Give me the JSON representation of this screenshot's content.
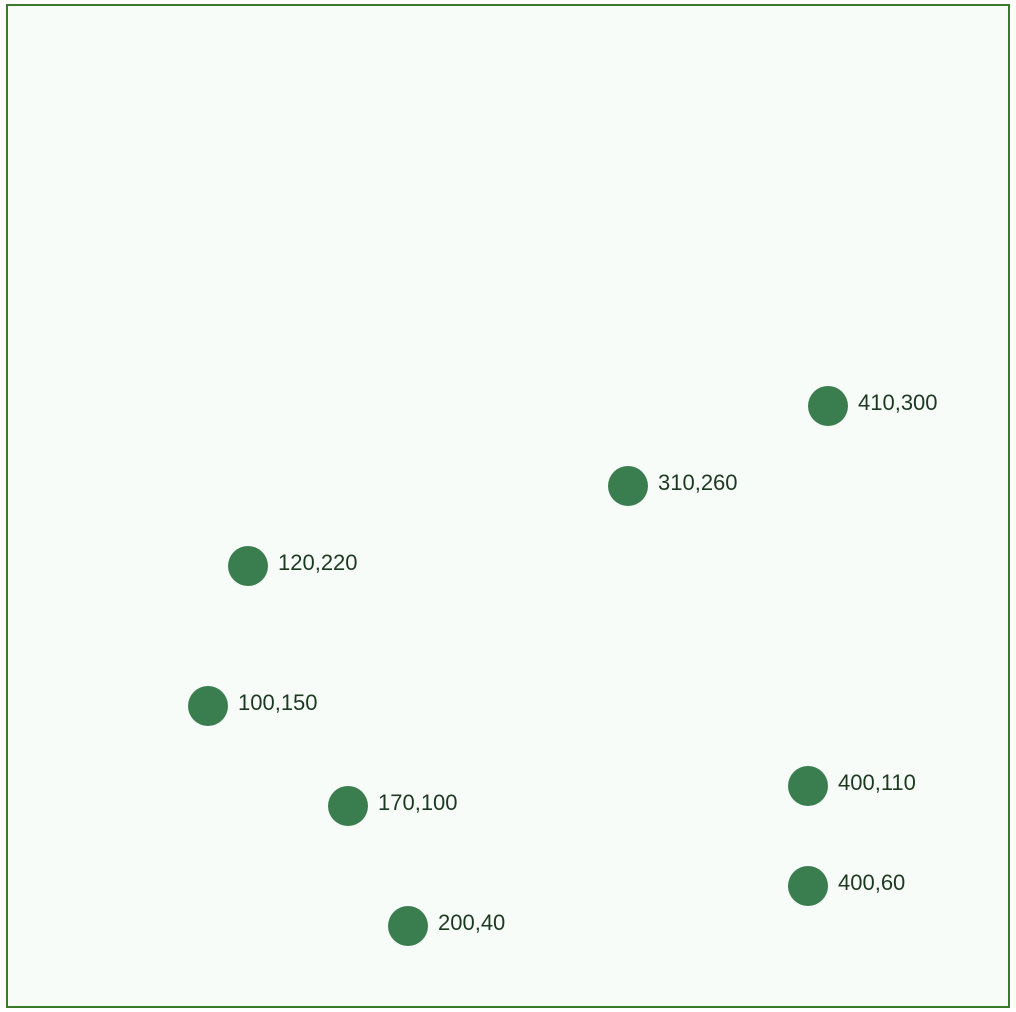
{
  "chart_data": {
    "type": "scatter",
    "title": "",
    "xlabel": "",
    "ylabel": "",
    "xlim": [
      0,
      500
    ],
    "ylim": [
      0,
      500
    ],
    "grid": false,
    "legend": "none",
    "marker_color": "#3a7d4f",
    "border_color": "#3a7a2a",
    "background_color": "#f8fcf8",
    "points": [
      {
        "x": 410,
        "y": 300,
        "label": "410,300"
      },
      {
        "x": 310,
        "y": 260,
        "label": "310,260"
      },
      {
        "x": 120,
        "y": 220,
        "label": "120,220"
      },
      {
        "x": 100,
        "y": 150,
        "label": "100,150"
      },
      {
        "x": 170,
        "y": 100,
        "label": "170,100"
      },
      {
        "x": 400,
        "y": 110,
        "label": "400,110"
      },
      {
        "x": 400,
        "y": 60,
        "label": "400,60"
      },
      {
        "x": 200,
        "y": 40,
        "label": "200,40"
      }
    ]
  }
}
